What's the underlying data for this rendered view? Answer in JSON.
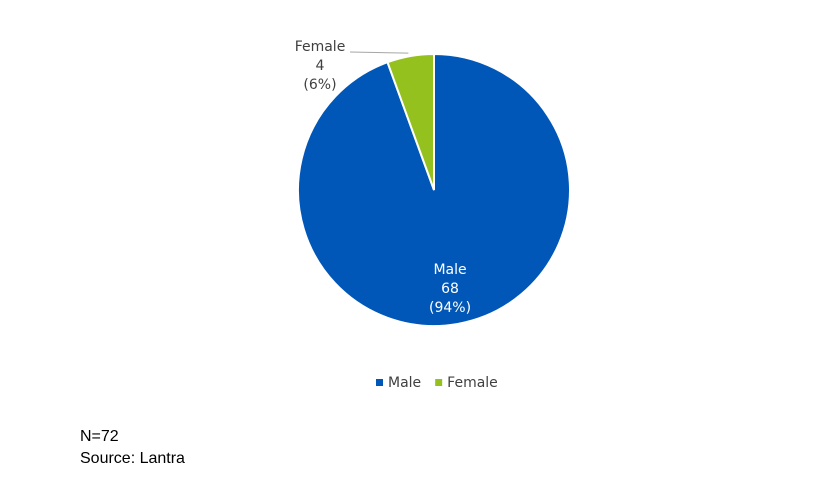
{
  "chart_data": {
    "type": "pie",
    "categories": [
      "Male",
      "Female"
    ],
    "values": [
      68,
      4
    ],
    "percent_labels": [
      "(94%)",
      "(6%)"
    ],
    "colors": [
      "#0057b8",
      "#95c11f"
    ],
    "legend": "bottom"
  },
  "notes": [
    "N=72",
    "Source: Lantra"
  ]
}
